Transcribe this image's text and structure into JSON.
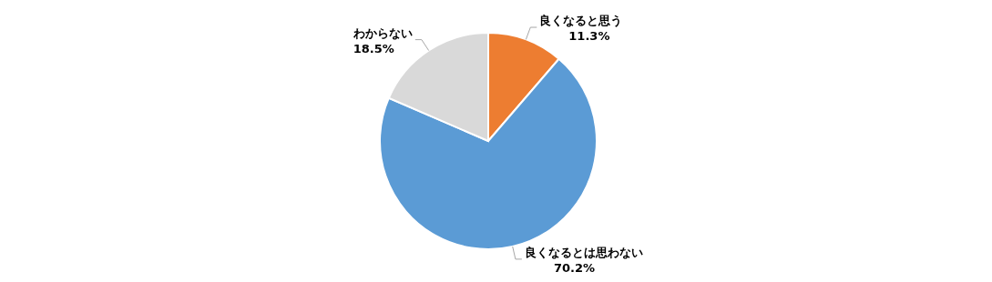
{
  "chart_data": {
    "type": "pie",
    "categories": [
      "良くなると思う",
      "良くなるとは思わない",
      "わからない"
    ],
    "values": [
      11.3,
      70.2,
      18.5
    ],
    "colors": [
      "#ed7d31",
      "#5b9bd5",
      "#d9d9d9"
    ],
    "value_labels": [
      "11.3%",
      "70.2%",
      "18.5%"
    ]
  }
}
